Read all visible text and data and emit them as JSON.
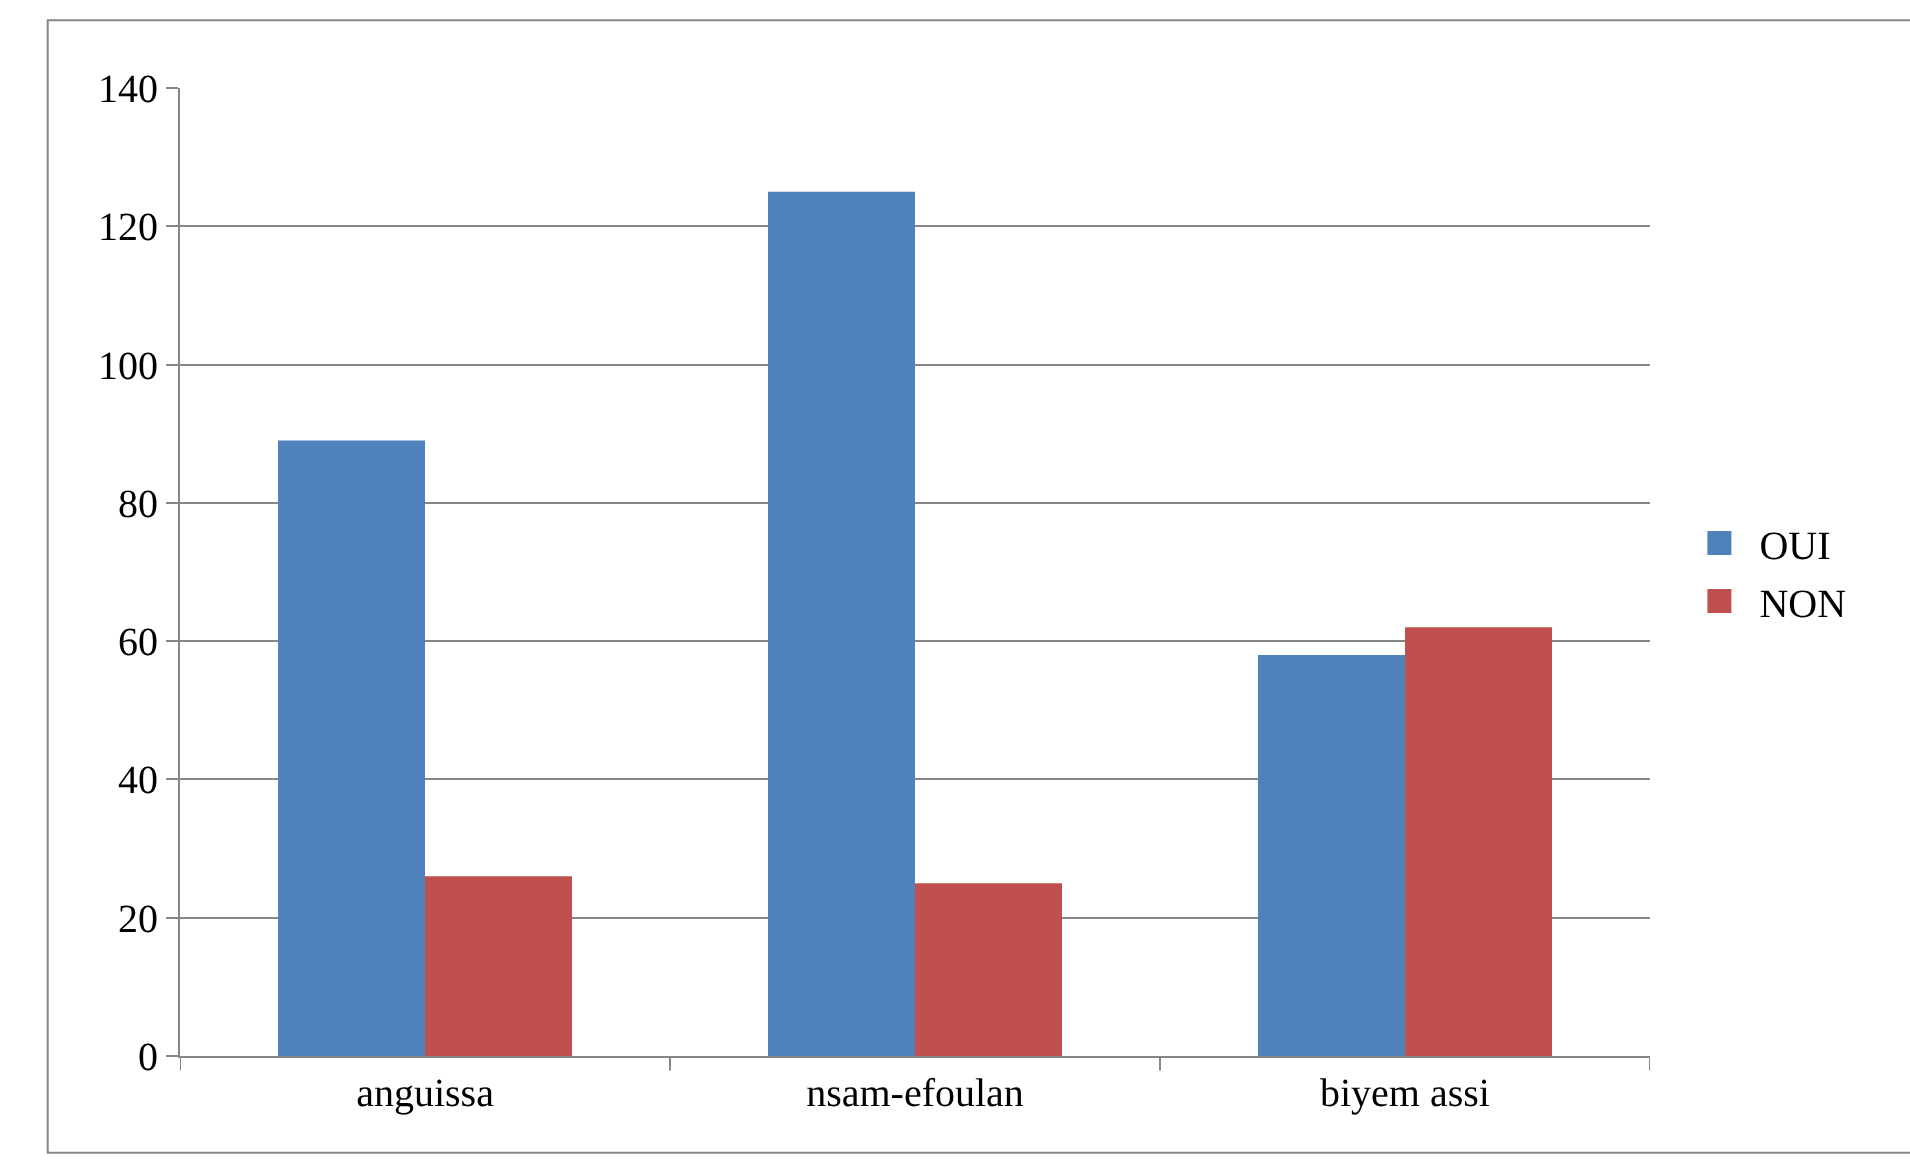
{
  "chart_data": {
    "type": "bar",
    "categories": [
      "anguissa",
      "nsam-efoulan",
      "biyem assi"
    ],
    "series": [
      {
        "name": "OUI",
        "color": "#4f81bd",
        "values": [
          89,
          125,
          58
        ]
      },
      {
        "name": "NON",
        "color": "#c0504d",
        "values": [
          26,
          25,
          62
        ]
      }
    ],
    "ylim": [
      0,
      140
    ],
    "yticks": [
      0,
      20,
      40,
      60,
      80,
      100,
      120,
      140
    ],
    "grid": "y",
    "legend": "right"
  }
}
